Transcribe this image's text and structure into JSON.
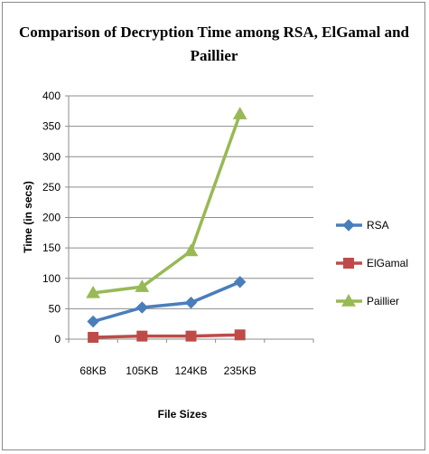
{
  "chart_data": {
    "type": "line",
    "title_line1": "Comparison of Decryption Time among RSA, ElGamal and",
    "title_line2": "Paillier",
    "xlabel": "File Sizes",
    "ylabel": "Time (in secs)",
    "categories": [
      "68KB",
      "105KB",
      "124KB",
      "235KB"
    ],
    "ylim": [
      0,
      400
    ],
    "yticks": [
      0,
      50,
      100,
      150,
      200,
      250,
      300,
      350,
      400
    ],
    "grid": true,
    "legend_position": "right",
    "series": [
      {
        "name": "RSA",
        "values": [
          29,
          52,
          60,
          94
        ],
        "color": "#4a7ebb",
        "marker": "diamond"
      },
      {
        "name": "ElGamal",
        "values": [
          3,
          5,
          5,
          7
        ],
        "color": "#be4b48",
        "marker": "square"
      },
      {
        "name": "Paillier",
        "values": [
          76,
          86,
          145,
          370
        ],
        "color": "#98b954",
        "marker": "triangle"
      }
    ]
  }
}
